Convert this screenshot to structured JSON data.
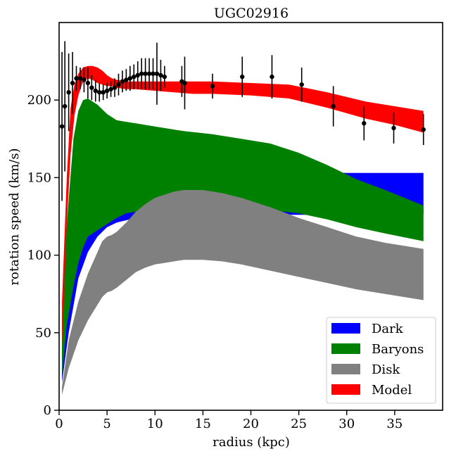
{
  "chart_data": {
    "type": "area",
    "title": "UGC02916",
    "xlabel": "radius (kpc)",
    "ylabel": "rotation speed (km/s)",
    "xlim": [
      0,
      40
    ],
    "ylim": [
      0,
      250
    ],
    "xticks": [
      "0",
      "5",
      "10",
      "15",
      "20",
      "25",
      "30",
      "35"
    ],
    "yticks": [
      "0",
      "50",
      "100",
      "150",
      "200"
    ],
    "legend_position": "bottom-right",
    "legend": [
      {
        "name": "Dark",
        "color": "#0000ff"
      },
      {
        "name": "Baryons",
        "color": "#008000"
      },
      {
        "name": "Disk",
        "color": "#808080"
      },
      {
        "name": "Model",
        "color": "#ff0000"
      }
    ],
    "bands": [
      {
        "name": "Dark",
        "color": "#0000ff",
        "x": [
          0.3,
          1.0,
          2.0,
          3.0,
          4.0,
          5.0,
          6.0,
          8.0,
          10.0,
          13.0,
          16.0,
          20.0,
          25.0,
          30.0,
          35.0,
          38.0
        ],
        "lower": [
          18,
          50,
          85,
          102,
          112,
          118,
          121,
          124,
          125,
          126,
          126,
          126,
          126,
          126,
          126,
          126
        ],
        "upper": [
          40,
          120,
          182,
          172,
          162,
          157,
          156,
          155,
          155,
          154,
          154,
          154,
          154,
          153,
          153,
          153
        ]
      },
      {
        "name": "Baryons",
        "color": "#008000",
        "x": [
          0.3,
          0.8,
          1.5,
          2.0,
          2.5,
          3.0,
          3.5,
          4.0,
          5.0,
          6.0,
          7.0,
          8.0,
          10.0,
          13.0,
          16.0,
          19.0,
          22.0,
          25.0,
          28.0,
          31.0,
          34.0,
          38.0
        ],
        "lower": [
          22,
          55,
          80,
          95,
          105,
          112,
          114,
          116,
          120,
          124,
          127,
          128,
          130,
          132,
          132,
          131,
          129,
          127,
          123,
          118,
          114,
          109
        ],
        "upper": [
          60,
          120,
          175,
          193,
          200,
          201,
          199,
          197,
          191,
          187,
          186,
          185,
          183,
          180,
          178,
          175,
          172,
          166,
          158,
          149,
          142,
          132
        ]
      },
      {
        "name": "Disk",
        "color": "#808080",
        "x": [
          0.3,
          1.0,
          2.0,
          3.0,
          4.0,
          4.5,
          5.0,
          5.5,
          6.0,
          7.0,
          8.0,
          9.0,
          10.0,
          11.0,
          12.0,
          13.0,
          15.0,
          17.0,
          19.0,
          22.0,
          25.0,
          28.0,
          31.0,
          34.0,
          38.0
        ],
        "lower": [
          10,
          27,
          45,
          58,
          68,
          73,
          76,
          77,
          79,
          84,
          89,
          92,
          94,
          95,
          96,
          97,
          97,
          96,
          94,
          90,
          86,
          82,
          78,
          75,
          71
        ],
        "upper": [
          15,
          45,
          70,
          88,
          102,
          109,
          112,
          113,
          115,
          121,
          128,
          133,
          137,
          139,
          141,
          142,
          142,
          140,
          137,
          131,
          124,
          118,
          112,
          108,
          104
        ]
      },
      {
        "name": "Model",
        "color": "#ff0000",
        "x": [
          0.3,
          0.8,
          1.2,
          1.6,
          2.0,
          2.5,
          3.0,
          3.5,
          4.0,
          4.5,
          5.0,
          5.5,
          6.0,
          7.0,
          8.0,
          10.0,
          12.0,
          14.0,
          16.0,
          20.0,
          24.0,
          28.0,
          32.0,
          35.0,
          38.0
        ],
        "lower": [
          40,
          120,
          165,
          190,
          203,
          212,
          214,
          213,
          211,
          210,
          209,
          209,
          208,
          207,
          207,
          206,
          205,
          204,
          204,
          203,
          201,
          195,
          188,
          184,
          179
        ],
        "upper": [
          70,
          150,
          195,
          210,
          217,
          221,
          222,
          222,
          221,
          219,
          216,
          214,
          213,
          212,
          212,
          212,
          212,
          212,
          212,
          211,
          210,
          205,
          199,
          196,
          193
        ]
      }
    ],
    "observed": {
      "name": "data",
      "x": [
        0.3,
        0.6,
        1.0,
        1.4,
        1.8,
        2.2,
        2.6,
        3.0,
        3.4,
        3.8,
        4.2,
        4.6,
        5.0,
        5.4,
        5.8,
        6.2,
        6.6,
        7.0,
        7.4,
        7.8,
        8.2,
        8.6,
        9.0,
        9.4,
        9.8,
        10.2,
        10.6,
        11.0,
        12.8,
        13.1,
        16.0,
        19.1,
        22.2,
        25.3,
        28.6,
        31.8,
        34.9,
        38.0
      ],
      "y": [
        183,
        196,
        205,
        211,
        214,
        214,
        213,
        211,
        208,
        206,
        205,
        205,
        206,
        207,
        208,
        210,
        212,
        213,
        214,
        215,
        216,
        217,
        217,
        217,
        217,
        217,
        216,
        215,
        212,
        211,
        209,
        215,
        215,
        210,
        196,
        185,
        182,
        181
      ],
      "err": [
        48,
        42,
        25,
        20,
        8,
        7,
        8,
        10,
        8,
        7,
        6,
        5,
        5,
        5,
        6,
        7,
        7,
        7,
        8,
        8,
        9,
        10,
        10,
        10,
        10,
        20,
        10,
        7,
        10,
        17,
        8,
        13,
        14,
        11,
        13,
        11,
        10,
        10
      ]
    }
  }
}
